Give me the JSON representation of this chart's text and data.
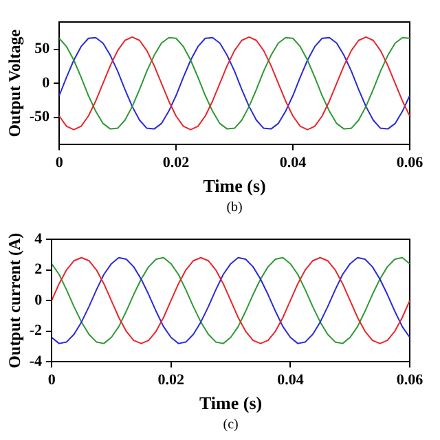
{
  "chart_data": [
    {
      "type": "line",
      "xlabel": "Time (s)",
      "ylabel": "Output Voltage",
      "annotations": [
        "(b)"
      ],
      "xlim": [
        0,
        0.06
      ],
      "ylim": [
        -90,
        90
      ],
      "xticks": [
        0,
        0.02,
        0.04,
        0.06
      ],
      "yticks": [
        -50,
        0,
        50
      ],
      "grid": false,
      "legend": false,
      "marker": "none",
      "x": [
        0,
        0.00125,
        0.0025,
        0.00375,
        0.005,
        0.00625,
        0.0075,
        0.00875,
        0.01,
        0.01125,
        0.0125,
        0.01375,
        0.015,
        0.01625,
        0.0175,
        0.01875,
        0.02,
        0.02125,
        0.0225,
        0.02375,
        0.025,
        0.02625,
        0.0275,
        0.02875,
        0.03,
        0.03125,
        0.0325,
        0.03375,
        0.035,
        0.03625,
        0.0375,
        0.03875,
        0.04,
        0.04125,
        0.0425,
        0.04375,
        0.045,
        0.04625,
        0.0475,
        0.04875,
        0.05,
        0.05125,
        0.0525,
        0.05375,
        0.055,
        0.05625,
        0.0575,
        0.05875,
        0.06
      ],
      "series": [
        {
          "color": "#e8262a",
          "values": [
            -48,
            -63,
            -68,
            -63,
            -48,
            -26,
            0,
            26,
            48,
            63,
            68,
            63,
            48,
            26,
            0,
            -26,
            -48,
            -63,
            -68,
            -63,
            -48,
            -26,
            0,
            26,
            48,
            63,
            68,
            63,
            48,
            26,
            0,
            -26,
            -48,
            -63,
            -68,
            -63,
            -48,
            -26,
            0,
            26,
            48,
            63,
            68,
            63,
            48,
            26,
            0,
            -26,
            -48
          ]
        },
        {
          "color": "#2e9a34",
          "values": [
            66,
            54,
            34,
            9,
            -18,
            -41,
            -59,
            -67,
            -66,
            -54,
            -34,
            -9,
            18,
            41,
            59,
            67,
            66,
            54,
            34,
            9,
            -18,
            -41,
            -59,
            -67,
            -66,
            -54,
            -34,
            -9,
            18,
            41,
            59,
            67,
            66,
            54,
            34,
            9,
            -18,
            -41,
            -59,
            -67,
            -66,
            -54,
            -34,
            -9,
            18,
            41,
            59,
            67,
            66
          ]
        },
        {
          "color": "#2a2ad8",
          "values": [
            -18,
            9,
            34,
            54,
            66,
            67,
            59,
            41,
            18,
            -9,
            -34,
            -54,
            -66,
            -67,
            -59,
            -41,
            -18,
            9,
            34,
            54,
            66,
            67,
            59,
            41,
            18,
            -9,
            -34,
            -54,
            -66,
            -67,
            -59,
            -41,
            -18,
            9,
            34,
            54,
            66,
            67,
            59,
            41,
            18,
            -9,
            -34,
            -54,
            -66,
            -67,
            -59,
            -41,
            -18
          ]
        }
      ]
    },
    {
      "type": "line",
      "xlabel": "Time (s)",
      "ylabel": "Output current (A)",
      "annotations": [
        "(c)"
      ],
      "xlim": [
        0,
        0.06
      ],
      "ylim": [
        -4,
        4
      ],
      "xticks": [
        0,
        0.02,
        0.04,
        0.06
      ],
      "yticks": [
        -4,
        -2,
        0,
        2,
        4
      ],
      "grid": false,
      "legend": false,
      "marker": "none",
      "x": [
        0,
        0.00125,
        0.0025,
        0.00375,
        0.005,
        0.00625,
        0.0075,
        0.00875,
        0.01,
        0.01125,
        0.0125,
        0.01375,
        0.015,
        0.01625,
        0.0175,
        0.01875,
        0.02,
        0.02125,
        0.0225,
        0.02375,
        0.025,
        0.02625,
        0.0275,
        0.02875,
        0.03,
        0.03125,
        0.0325,
        0.03375,
        0.035,
        0.03625,
        0.0375,
        0.03875,
        0.04,
        0.04125,
        0.0425,
        0.04375,
        0.045,
        0.04625,
        0.0475,
        0.04875,
        0.05,
        0.05125,
        0.0525,
        0.05375,
        0.055,
        0.05625,
        0.0575,
        0.05875,
        0.06
      ],
      "series": [
        {
          "color": "#e8262a",
          "values": [
            0,
            1.1,
            2,
            2.6,
            2.8,
            2.6,
            2,
            1.1,
            0,
            -1.1,
            -2,
            -2.6,
            -2.8,
            -2.6,
            -2,
            -1.1,
            0,
            1.1,
            2,
            2.6,
            2.8,
            2.6,
            2,
            1.1,
            0,
            -1.1,
            -2,
            -2.6,
            -2.8,
            -2.6,
            -2,
            -1.1,
            0,
            1.1,
            2,
            2.6,
            2.8,
            2.6,
            2,
            1.1,
            0,
            -1.1,
            -2,
            -2.6,
            -2.8,
            -2.6,
            -2,
            -1.1,
            0
          ]
        },
        {
          "color": "#2a2ad8",
          "values": [
            -2.4,
            -2.8,
            -2.7,
            -2.2,
            -1.4,
            -0.4,
            0.7,
            1.7,
            2.4,
            2.8,
            2.7,
            2.2,
            1.4,
            0.4,
            -0.7,
            -1.7,
            -2.4,
            -2.8,
            -2.7,
            -2.2,
            -1.4,
            -0.4,
            0.7,
            1.7,
            2.4,
            2.8,
            2.7,
            2.2,
            1.4,
            0.4,
            -0.7,
            -1.7,
            -2.4,
            -2.8,
            -2.7,
            -2.2,
            -1.4,
            -0.4,
            0.7,
            1.7,
            2.4,
            2.8,
            2.7,
            2.2,
            1.4,
            0.4,
            -0.7,
            -1.7,
            -2.4
          ]
        },
        {
          "color": "#2e9a34",
          "values": [
            2.4,
            1.7,
            0.7,
            -0.4,
            -1.4,
            -2.2,
            -2.7,
            -2.8,
            -2.4,
            -1.7,
            -0.7,
            0.4,
            1.4,
            2.2,
            2.7,
            2.8,
            2.4,
            1.7,
            0.7,
            -0.4,
            -1.4,
            -2.2,
            -2.7,
            -2.8,
            -2.4,
            -1.7,
            -0.7,
            0.4,
            1.4,
            2.2,
            2.7,
            2.8,
            2.4,
            1.7,
            0.7,
            -0.4,
            -1.4,
            -2.2,
            -2.7,
            -2.8,
            -2.4,
            -1.7,
            -0.7,
            0.4,
            1.4,
            2.2,
            2.7,
            2.8,
            2.4
          ]
        }
      ]
    }
  ]
}
